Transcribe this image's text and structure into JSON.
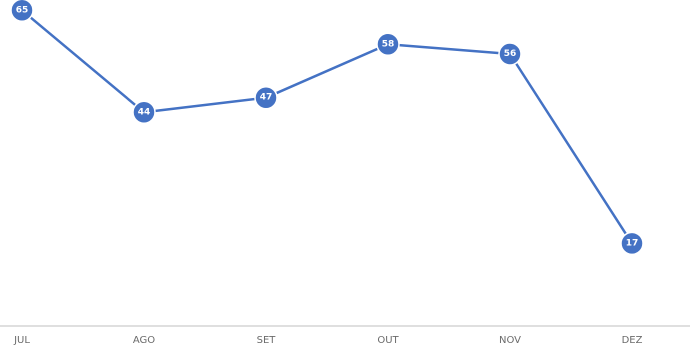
{
  "chart_data": {
    "type": "line",
    "categories": [
      "JUL",
      "AGO",
      "SET",
      "OUT",
      "NOV",
      "DEZ"
    ],
    "values": [
      65,
      44,
      47,
      58,
      56,
      17
    ],
    "data_labels": [
      "65",
      "44",
      "47",
      "58",
      "56",
      "17"
    ],
    "title": "",
    "xlabel": "",
    "ylabel": "",
    "ylim": [
      0,
      70
    ],
    "grid": false,
    "legend": "none",
    "colors": {
      "line": "#4472c4",
      "marker": "#4472c4",
      "marker_border": "#ffffff",
      "axis": "#bfbfbf"
    }
  }
}
